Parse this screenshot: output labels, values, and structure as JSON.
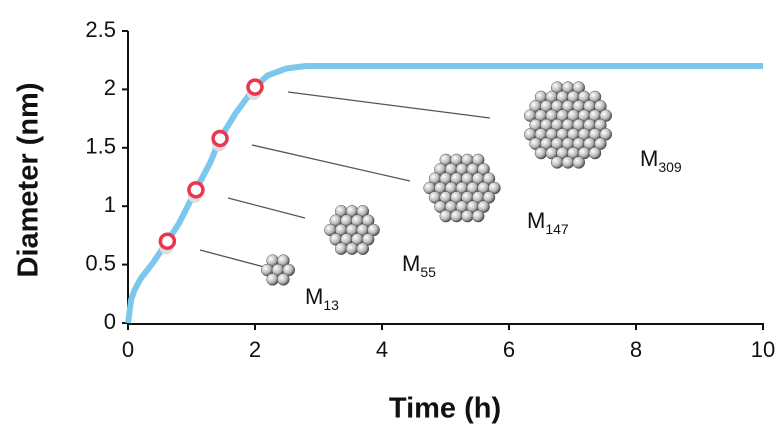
{
  "chart_data": {
    "type": "line",
    "x_label": "Time (h)",
    "y_label": "Diameter (nm)",
    "x": [
      0,
      0.05,
      0.1,
      0.2,
      0.4,
      0.62,
      0.8,
      1.07,
      1.3,
      1.45,
      1.7,
      2.0,
      2.2,
      2.5,
      2.8,
      3,
      4,
      10
    ],
    "series": [
      {
        "color": "#7cc8ec",
        "values": [
          0,
          0.2,
          0.28,
          0.38,
          0.52,
          0.7,
          0.85,
          1.14,
          1.38,
          1.58,
          1.8,
          2.02,
          2.12,
          2.18,
          2.2,
          2.2,
          2.2,
          2.2
        ]
      }
    ],
    "markers": {
      "color": "#e8374f",
      "x": [
        0.62,
        1.07,
        1.45,
        2.0
      ],
      "values": [
        0.7,
        1.14,
        1.58,
        2.02
      ]
    },
    "annotations": [
      {
        "text": "M",
        "subscript": "13"
      },
      {
        "text": "M",
        "subscript": "55"
      },
      {
        "text": "M",
        "subscript": "147"
      },
      {
        "text": "M",
        "subscript": "309"
      }
    ],
    "xlim": [
      0,
      10
    ],
    "xticks": [
      0,
      2,
      4,
      6,
      8,
      10
    ],
    "ylim": [
      0,
      2.5
    ],
    "yticks": [
      0,
      0.5,
      1,
      1.5,
      2,
      2.5
    ]
  }
}
